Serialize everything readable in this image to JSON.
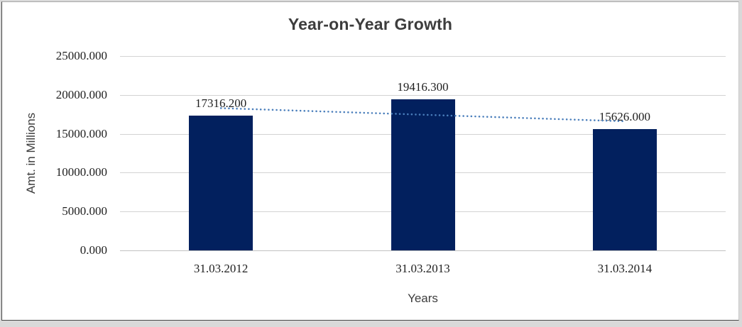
{
  "chart_data": {
    "type": "bar",
    "title": "Year-on-Year Growth",
    "xlabel": "Years",
    "ylabel": "Amt. in Millions",
    "categories": [
      "31.03.2012",
      "31.03.2013",
      "31.03.2014"
    ],
    "values": [
      17316.2,
      19416.3,
      15626.0
    ],
    "value_labels": [
      "17316.200",
      "19416.300",
      "15626.000"
    ],
    "y_tick_labels": [
      "25000.000",
      "20000.000",
      "15000.000",
      "10000.000",
      "5000.000",
      "0.000"
    ],
    "ylim": [
      0,
      25000
    ],
    "grid": "horizontal",
    "legend_position": "none",
    "trendline": {
      "type": "linear",
      "style": "dotted"
    },
    "colors": {
      "bar": "#02205e",
      "trendline": "#4a7ebb",
      "gridline": "#d3d3d3",
      "baseline": "#c1c1c1"
    }
  }
}
